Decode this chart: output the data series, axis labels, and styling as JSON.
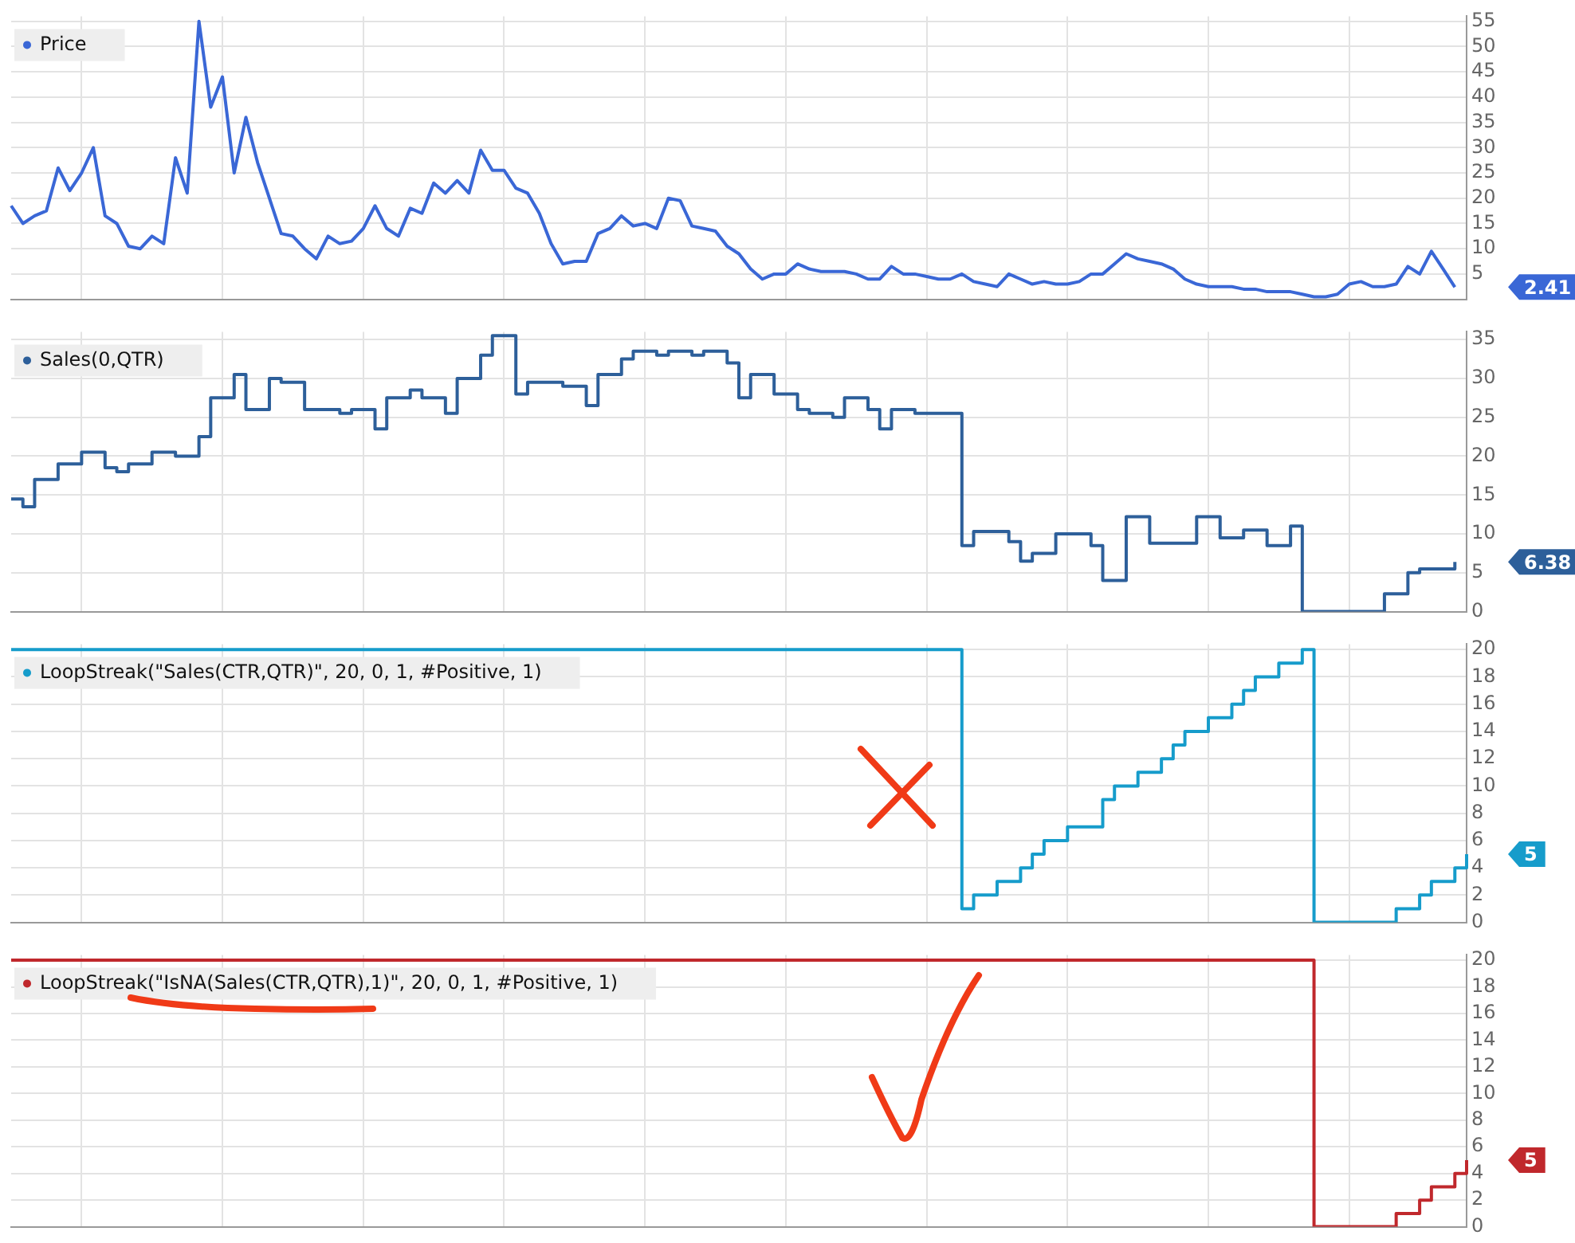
{
  "chart_data": [
    {
      "type": "line",
      "tick_labels": "y",
      "legend": "top left",
      "grid": true,
      "ylim": [
        0,
        56
      ],
      "yticks": [
        5,
        10,
        15,
        20,
        25,
        30,
        35,
        40,
        45,
        50,
        55
      ],
      "categories": [
        null,
        null,
        null,
        null,
        null,
        null,
        null,
        null,
        null,
        null,
        null,
        null,
        null,
        null,
        null,
        null,
        null,
        null,
        null,
        null,
        null,
        null,
        null,
        null,
        null,
        null,
        null,
        null,
        null,
        null,
        null,
        null,
        null,
        null,
        null,
        null,
        null,
        null,
        null,
        null,
        null,
        null,
        null,
        null,
        null,
        null,
        null,
        null,
        null,
        null,
        null,
        null,
        null,
        null,
        null,
        null,
        null,
        null,
        null,
        null,
        null,
        null,
        null,
        null,
        null,
        null,
        null,
        null,
        null,
        null,
        null,
        null,
        null,
        null,
        null,
        null,
        null,
        null,
        null,
        null,
        null,
        null,
        null,
        null,
        null,
        null,
        null,
        null,
        null,
        null,
        null,
        null,
        null,
        null,
        null,
        null,
        null,
        null,
        null,
        null,
        null,
        null,
        null,
        null,
        null,
        null,
        null,
        null,
        null,
        null,
        null,
        null,
        null,
        null,
        null,
        null,
        null,
        null,
        null,
        null,
        null,
        null,
        null,
        null,
        null
      ],
      "series": [
        {
          "name": "Price",
          "color": "#3a67d6",
          "values": [
            18.5,
            15,
            16.5,
            17.5,
            26,
            21.5,
            25,
            30,
            16.5,
            15,
            10.5,
            10,
            12.5,
            11,
            28,
            21,
            55,
            38,
            44,
            25,
            36,
            27,
            20,
            13,
            12.5,
            10,
            8,
            12.5,
            11,
            11.5,
            14,
            18.5,
            14,
            12.5,
            18,
            17,
            23,
            21,
            23.5,
            21,
            29.5,
            25.5,
            25.5,
            22,
            21,
            17,
            11,
            7,
            7.5,
            7.5,
            13,
            14,
            16.5,
            14.5,
            15,
            14,
            20,
            19.5,
            14.5,
            14,
            13.5,
            10.5,
            9,
            6,
            4,
            5,
            5,
            7,
            6,
            5.5,
            5.5,
            5.5,
            5,
            4,
            4,
            6.5,
            5,
            5,
            4.5,
            4,
            4,
            5,
            3.5,
            3,
            2.5,
            5,
            4,
            3,
            3.5,
            3,
            3,
            3.5,
            5,
            5,
            7,
            9,
            8,
            7.5,
            7,
            6,
            4,
            3,
            2.5,
            2.5,
            2.5,
            2,
            2,
            1.5,
            1.5,
            1.5,
            1,
            0.5,
            0.5,
            1,
            3,
            3.5,
            2.5,
            2.5,
            3,
            6.5,
            5,
            9.5,
            6,
            2.41,
            null
          ]
        }
      ],
      "annotations": [
        "2.41"
      ]
    },
    {
      "type": "step",
      "tick_labels": "y",
      "legend": "top left",
      "grid": true,
      "ylim": [
        0,
        36
      ],
      "yticks": [
        0,
        5,
        10,
        15,
        20,
        25,
        30,
        35
      ],
      "categories": [
        null,
        null,
        null,
        null,
        null,
        null,
        null,
        null,
        null,
        null,
        null,
        null,
        null,
        null,
        null,
        null,
        null,
        null,
        null,
        null,
        null,
        null,
        null,
        null,
        null,
        null,
        null,
        null,
        null,
        null,
        null,
        null,
        null,
        null,
        null,
        null,
        null,
        null,
        null,
        null,
        null,
        null,
        null,
        null,
        null,
        null,
        null,
        null,
        null,
        null,
        null,
        null,
        null,
        null,
        null,
        null,
        null,
        null,
        null,
        null,
        null,
        null,
        null,
        null,
        null,
        null,
        null,
        null,
        null,
        null,
        null,
        null,
        null,
        null,
        null,
        null,
        null,
        null,
        null,
        null,
        null,
        null,
        null,
        null,
        null,
        null,
        null,
        null,
        null,
        null,
        null,
        null,
        null,
        null,
        null,
        null,
        null,
        null,
        null,
        null,
        null,
        null,
        null,
        null,
        null,
        null,
        null,
        null,
        null,
        null,
        null,
        null,
        null,
        null,
        null,
        null,
        null,
        null,
        null,
        null,
        null,
        null,
        null,
        null,
        null
      ],
      "series": [
        {
          "name": "Sales(0,QTR)",
          "color": "#2d5f9a",
          "values": [
            14.5,
            13.5,
            17,
            17,
            19,
            19,
            20.5,
            20.5,
            18.5,
            18,
            19,
            19,
            20.5,
            20.5,
            20,
            20,
            22.5,
            27.5,
            27.5,
            30.5,
            26,
            26,
            30,
            29.5,
            29.5,
            26,
            26,
            26,
            25.5,
            26,
            26,
            23.5,
            27.5,
            27.5,
            28.5,
            27.5,
            27.5,
            25.5,
            30,
            30,
            33,
            35.5,
            35.5,
            28,
            29.5,
            29.5,
            29.5,
            29,
            29,
            26.5,
            30.5,
            30.5,
            32.5,
            33.5,
            33.5,
            33,
            33.5,
            33.5,
            33,
            33.5,
            33.5,
            32,
            27.5,
            30.5,
            30.5,
            28,
            28,
            26,
            25.5,
            25.5,
            25,
            27.5,
            27.5,
            26,
            23.5,
            26,
            26,
            25.5,
            25.5,
            25.5,
            25.5,
            8.5,
            10.3,
            10.3,
            10.3,
            9,
            6.5,
            7.5,
            7.5,
            10,
            10,
            10,
            8.5,
            4,
            4,
            12.2,
            12.2,
            8.8,
            8.8,
            8.8,
            8.8,
            12.2,
            12.2,
            9.5,
            9.5,
            10.5,
            10.5,
            8.5,
            8.5,
            11,
            0,
            0,
            0,
            0,
            0,
            0,
            0,
            2.3,
            2.3,
            5,
            5.5,
            5.5,
            5.5,
            6.38,
            null
          ]
        }
      ],
      "annotations": [
        "6.38"
      ]
    },
    {
      "type": "step",
      "tick_labels": "y",
      "legend": "top left",
      "grid": true,
      "ylim": [
        0,
        20.4
      ],
      "yticks": [
        0,
        2,
        4,
        6,
        8,
        10,
        12,
        14,
        16,
        18,
        20
      ],
      "categories": [
        null,
        null,
        null,
        null,
        null,
        null,
        null,
        null,
        null,
        null,
        null,
        null,
        null,
        null,
        null,
        null,
        null,
        null,
        null,
        null,
        null,
        null,
        null,
        null,
        null,
        null,
        null,
        null,
        null,
        null,
        null,
        null,
        null,
        null,
        null,
        null,
        null,
        null,
        null,
        null,
        null,
        null,
        null,
        null,
        null,
        null,
        null,
        null,
        null,
        null,
        null,
        null,
        null,
        null,
        null,
        null,
        null,
        null,
        null,
        null,
        null,
        null,
        null,
        null,
        null,
        null,
        null,
        null,
        null,
        null,
        null,
        null,
        null,
        null,
        null,
        null,
        null,
        null,
        null,
        null,
        null,
        null,
        null,
        null,
        null,
        null,
        null,
        null,
        null,
        null,
        null,
        null,
        null,
        null,
        null,
        null,
        null,
        null,
        null,
        null,
        null,
        null,
        null,
        null,
        null,
        null,
        null,
        null,
        null,
        null,
        null,
        null,
        null,
        null,
        null,
        null,
        null,
        null,
        null,
        null,
        null,
        null,
        null,
        null,
        null
      ],
      "series": [
        {
          "name": "LoopStreak(\"Sales(CTR,QTR)\", 20, 0, 1, #Positive, 1)",
          "color": "#169ccb",
          "values": [
            20,
            20,
            20,
            20,
            20,
            20,
            20,
            20,
            20,
            20,
            20,
            20,
            20,
            20,
            20,
            20,
            20,
            20,
            20,
            20,
            20,
            20,
            20,
            20,
            20,
            20,
            20,
            20,
            20,
            20,
            20,
            20,
            20,
            20,
            20,
            20,
            20,
            20,
            20,
            20,
            20,
            20,
            20,
            20,
            20,
            20,
            20,
            20,
            20,
            20,
            20,
            20,
            20,
            20,
            20,
            20,
            20,
            20,
            20,
            20,
            20,
            20,
            20,
            20,
            20,
            20,
            20,
            20,
            20,
            20,
            20,
            20,
            20,
            20,
            20,
            20,
            20,
            20,
            20,
            20,
            20,
            1,
            2,
            2,
            3,
            3,
            4,
            5,
            6,
            6,
            7,
            7,
            7,
            9,
            10,
            10,
            11,
            11,
            12,
            13,
            14,
            14,
            15,
            15,
            16,
            17,
            18,
            18,
            19,
            19,
            20,
            0,
            0,
            0,
            0,
            0,
            0,
            0,
            1,
            1,
            2,
            3,
            3,
            4,
            5
          ]
        }
      ],
      "annotations": [
        "5"
      ]
    },
    {
      "type": "step",
      "tick_labels": "y",
      "legend": "top left",
      "grid": true,
      "ylim": [
        0,
        20.4
      ],
      "yticks": [
        0,
        2,
        4,
        6,
        8,
        10,
        12,
        14,
        16,
        18,
        20
      ],
      "categories": [
        null,
        null,
        null,
        null,
        null,
        null,
        null,
        null,
        null,
        null,
        null,
        null,
        null,
        null,
        null,
        null,
        null,
        null,
        null,
        null,
        null,
        null,
        null,
        null,
        null,
        null,
        null,
        null,
        null,
        null,
        null,
        null,
        null,
        null,
        null,
        null,
        null,
        null,
        null,
        null,
        null,
        null,
        null,
        null,
        null,
        null,
        null,
        null,
        null,
        null,
        null,
        null,
        null,
        null,
        null,
        null,
        null,
        null,
        null,
        null,
        null,
        null,
        null,
        null,
        null,
        null,
        null,
        null,
        null,
        null,
        null,
        null,
        null,
        null,
        null,
        null,
        null,
        null,
        null,
        null,
        null,
        null,
        null,
        null,
        null,
        null,
        null,
        null,
        null,
        null,
        null,
        null,
        null,
        null,
        null,
        null,
        null,
        null,
        null,
        null,
        null,
        null,
        null,
        null,
        null,
        null,
        null,
        null,
        null,
        null,
        null,
        null,
        null,
        null,
        null,
        null,
        null,
        null,
        null,
        null,
        null,
        null,
        null,
        null,
        null
      ],
      "series": [
        {
          "name": "LoopStreak(\"IsNA(Sales(CTR,QTR),1)\", 20, 0, 1, #Positive, 1)",
          "color": "#c0282c",
          "values": [
            20,
            20,
            20,
            20,
            20,
            20,
            20,
            20,
            20,
            20,
            20,
            20,
            20,
            20,
            20,
            20,
            20,
            20,
            20,
            20,
            20,
            20,
            20,
            20,
            20,
            20,
            20,
            20,
            20,
            20,
            20,
            20,
            20,
            20,
            20,
            20,
            20,
            20,
            20,
            20,
            20,
            20,
            20,
            20,
            20,
            20,
            20,
            20,
            20,
            20,
            20,
            20,
            20,
            20,
            20,
            20,
            20,
            20,
            20,
            20,
            20,
            20,
            20,
            20,
            20,
            20,
            20,
            20,
            20,
            20,
            20,
            20,
            20,
            20,
            20,
            20,
            20,
            20,
            20,
            20,
            20,
            20,
            20,
            20,
            20,
            20,
            20,
            20,
            20,
            20,
            20,
            20,
            20,
            20,
            20,
            20,
            20,
            20,
            20,
            20,
            20,
            20,
            20,
            20,
            20,
            20,
            20,
            20,
            20,
            20,
            20,
            0,
            0,
            0,
            0,
            0,
            0,
            0,
            1,
            1,
            2,
            3,
            3,
            4,
            5
          ]
        }
      ],
      "annotations": [
        "5"
      ]
    }
  ]
}
